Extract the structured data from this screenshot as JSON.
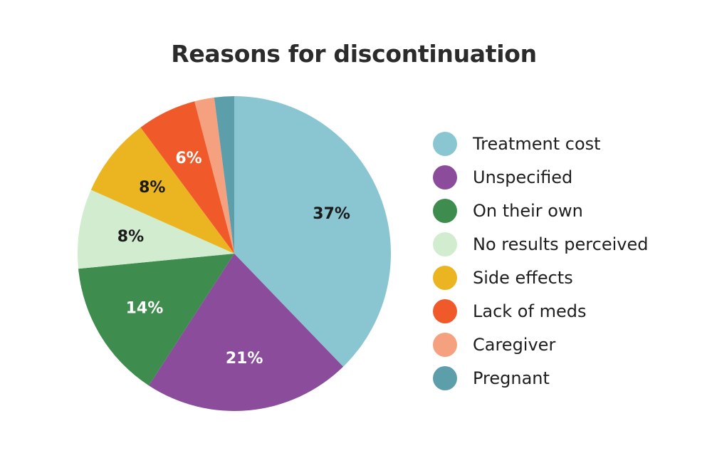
{
  "chart_data": {
    "type": "pie",
    "title": "Reasons for discontinuation",
    "slices": [
      {
        "label": "Treatment cost",
        "value": 37,
        "display": "37%",
        "color": "#8ac6d1",
        "text_color": "#1a1a1a"
      },
      {
        "label": "Unspecified",
        "value": 21,
        "display": "21%",
        "color": "#8b4c9b",
        "text_color": "#ffffff"
      },
      {
        "label": "On their own",
        "value": 14,
        "display": "14%",
        "color": "#3e8c4e",
        "text_color": "#ffffff"
      },
      {
        "label": "No results perceived",
        "value": 8,
        "display": "8%",
        "color": "#d2ecd0",
        "text_color": "#1a1a1a"
      },
      {
        "label": "Side effects",
        "value": 8,
        "display": "8%",
        "color": "#ebb521",
        "text_color": "#1a1a1a"
      },
      {
        "label": "Lack of meds",
        "value": 6,
        "display": "6%",
        "color": "#f05a2a",
        "text_color": "#ffffff"
      },
      {
        "label": "Caregiver",
        "value": 2,
        "display": "",
        "color": "#f5a07f",
        "text_color": "#ffffff"
      },
      {
        "label": "Pregnant",
        "value": 2,
        "display": "",
        "color": "#5d9eab",
        "text_color": "#ffffff"
      }
    ],
    "legend_position": "right"
  }
}
